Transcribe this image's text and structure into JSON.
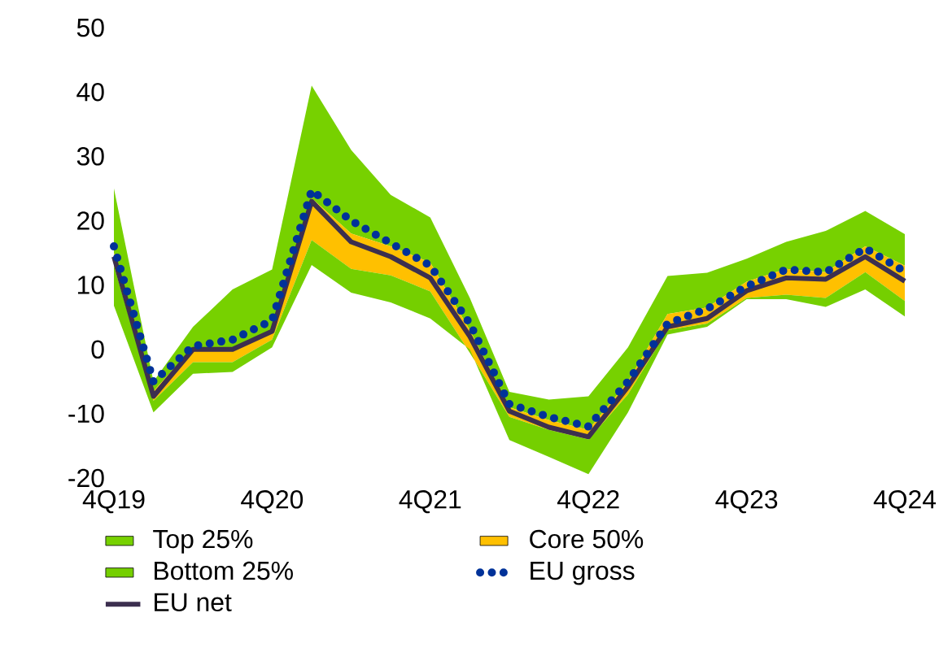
{
  "chart_data": {
    "type": "line",
    "categories": [
      "4Q19",
      null,
      null,
      null,
      "4Q20",
      null,
      null,
      null,
      "4Q21",
      null,
      null,
      null,
      "4Q22",
      null,
      null,
      null,
      "4Q23",
      null,
      null,
      null,
      "4Q24"
    ],
    "series": [
      {
        "name": "Top 25%",
        "type": "area",
        "color": "#77d100",
        "values": [
          null,
          null,
          null,
          null,
          null,
          null,
          null,
          null,
          null,
          null,
          null,
          null,
          null,
          null,
          null,
          null,
          null,
          null,
          null,
          null,
          null
        ],
        "lower": [
          15,
          -6.5,
          0.3,
          0,
          3,
          23.5,
          18,
          16,
          13.5,
          3,
          -9,
          -11,
          -12.5,
          -5,
          5.5,
          6.5,
          10.5,
          12.5,
          12,
          16,
          13
        ],
        "upper": [
          25,
          -5,
          3.5,
          9.3,
          12.4,
          41,
          31,
          24,
          20.5,
          8,
          -6.6,
          -7.8,
          -7.3,
          0.3,
          11.4,
          11.9,
          14.1,
          16.7,
          18.4,
          21.5,
          17.9
        ]
      },
      {
        "name": "Core 50%",
        "type": "area",
        "color": "#ffc000",
        "values": [
          null,
          null,
          null,
          null,
          null,
          null,
          null,
          null,
          null,
          null,
          null,
          null,
          null,
          null,
          null,
          null,
          null,
          null,
          null,
          null,
          null
        ],
        "lower": [
          13,
          -8,
          -2,
          -2,
          1.5,
          17,
          12.5,
          11.5,
          9,
          -0.5,
          -10.5,
          -12.5,
          -14,
          -7,
          3,
          4,
          8,
          8.5,
          8,
          12,
          7.5
        ],
        "upper": [
          15,
          -6.5,
          0.3,
          0,
          3,
          23.5,
          18,
          16,
          13.5,
          3,
          -9,
          -11,
          -12.5,
          -5,
          5.5,
          6.5,
          10.5,
          12.5,
          12,
          16,
          13
        ]
      },
      {
        "name": "Bottom 25%",
        "type": "area",
        "color": "#75cf00",
        "values": [
          null,
          null,
          null,
          null,
          null,
          null,
          null,
          null,
          null,
          null,
          null,
          null,
          null,
          null,
          null,
          null,
          null,
          null,
          null,
          null,
          null
        ],
        "lower": [
          6.8,
          -9.8,
          -3.8,
          -3.5,
          0.3,
          13.1,
          8.8,
          7.3,
          4.8,
          0,
          -14.1,
          -16.7,
          -19.4,
          -9.8,
          2.3,
          3.5,
          7.8,
          7.8,
          6.6,
          9.3,
          5.1
        ],
        "upper": [
          13,
          -8,
          -2,
          -2,
          1.5,
          17,
          12.5,
          11.5,
          9,
          -0.5,
          -10.5,
          -12.5,
          -14,
          -7,
          3,
          4,
          8,
          8.5,
          8,
          12,
          7.5
        ]
      },
      {
        "name": "EU gross",
        "type": "line",
        "line_style": "dotted",
        "color": "#003299",
        "values": [
          16,
          -5,
          0.5,
          1.5,
          4.5,
          24.7,
          20,
          16.5,
          13,
          4,
          -8.5,
          -10.5,
          -12,
          -5,
          4,
          6.3,
          9.8,
          12.4,
          12,
          15.7,
          12.1
        ]
      },
      {
        "name": "EU net",
        "line_style": "solid",
        "color": "#3c2f4f",
        "values": [
          14.4,
          -7.3,
          0,
          0,
          2.8,
          23,
          16.7,
          14.4,
          11.1,
          2,
          -9.6,
          -12.1,
          -13.6,
          -5.8,
          3.5,
          4.8,
          9.1,
          11.1,
          10.9,
          14.4,
          10.6
        ]
      }
    ],
    "ylim": [
      -20,
      50
    ],
    "yticks": [
      -20,
      -10,
      0,
      10,
      20,
      30,
      40,
      50
    ],
    "grid": false,
    "legend": "bottom"
  }
}
